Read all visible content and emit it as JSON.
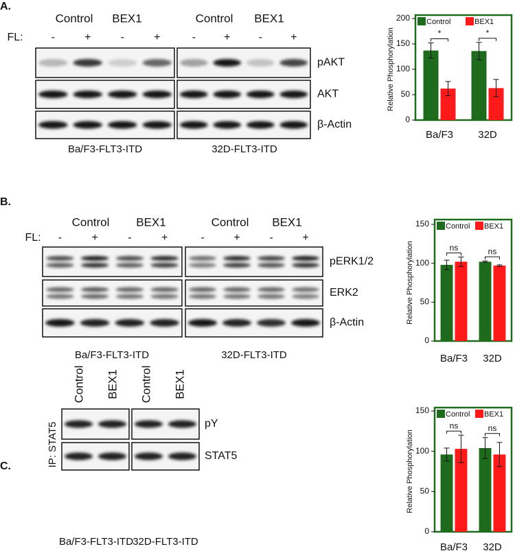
{
  "panels": [
    {
      "letter": "A.",
      "groups": [
        "Control",
        "BEX1",
        "Control",
        "BEX1"
      ],
      "fl_label": "FL:",
      "fl": [
        "-",
        "+",
        "-",
        "+",
        "-",
        "+",
        "-",
        "+"
      ],
      "rows": [
        "pAKT",
        "AKT",
        "β-Actin"
      ],
      "cell_lines": [
        "Ba/F3-FLT3-ITD",
        "32D-FLT3-ITD"
      ]
    },
    {
      "letter": "B.",
      "groups": [
        "Control",
        "BEX1",
        "Control",
        "BEX1"
      ],
      "fl_label": "FL:",
      "fl": [
        "-",
        "+",
        "-",
        "+",
        "-",
        "+",
        "-",
        "+"
      ],
      "rows": [
        "pERK1/2",
        "ERK2",
        "β-Actin"
      ],
      "cell_lines": [
        "Ba/F3-FLT3-ITD",
        "32D-FLT3-ITD"
      ]
    },
    {
      "letter": "C.",
      "lanes": [
        "Control",
        "BEX1",
        "Control",
        "BEX1"
      ],
      "ip_label": "IP: STAT5",
      "rows": [
        "pY",
        "STAT5"
      ],
      "cell_lines": [
        "Ba/F3-FLT3-ITD",
        "32D-FLT3-ITD"
      ]
    }
  ],
  "chart_data": [
    {
      "type": "bar",
      "y_label": "Relative Phosphorylation",
      "categories": [
        "Ba/F3",
        "32D"
      ],
      "series": [
        {
          "name": "Control",
          "color": "#1e6b1e",
          "values": [
            137,
            136
          ],
          "errors": [
            15,
            17
          ]
        },
        {
          "name": "BEX1",
          "color": "#ff1a1a",
          "values": [
            62,
            63
          ],
          "errors": [
            14,
            17
          ]
        }
      ],
      "annotations": [
        "*",
        "*"
      ],
      "ylim": [
        0,
        200
      ],
      "yticks": [
        0,
        50,
        100,
        150,
        200
      ],
      "frame_color": "#1e6b1e"
    },
    {
      "type": "bar",
      "y_label": "Relative Phosphorylation",
      "categories": [
        "Ba/F3",
        "32D"
      ],
      "series": [
        {
          "name": "Control",
          "color": "#1e6b1e",
          "values": [
            98,
            102
          ],
          "errors": [
            6,
            1
          ]
        },
        {
          "name": "BEX1",
          "color": "#ff1a1a",
          "values": [
            102,
            97
          ],
          "errors": [
            6,
            1
          ]
        }
      ],
      "annotations": [
        "ns",
        "ns"
      ],
      "ylim": [
        0,
        150
      ],
      "yticks": [
        0,
        50,
        100,
        150
      ],
      "frame_color": "#1e6b1e"
    },
    {
      "type": "bar",
      "y_label": "Relative Phosphorylation",
      "categories": [
        "Ba/F3",
        "32D"
      ],
      "series": [
        {
          "name": "Control",
          "color": "#1e6b1e",
          "values": [
            96,
            104
          ],
          "errors": [
            8,
            13
          ]
        },
        {
          "name": "BEX1",
          "color": "#ff1a1a",
          "values": [
            103,
            96
          ],
          "errors": [
            17,
            15
          ]
        }
      ],
      "annotations": [
        "ns",
        "ns"
      ],
      "ylim": [
        0,
        150
      ],
      "yticks": [
        0,
        50,
        100,
        150
      ],
      "frame_color": "#1e6b1e"
    }
  ]
}
